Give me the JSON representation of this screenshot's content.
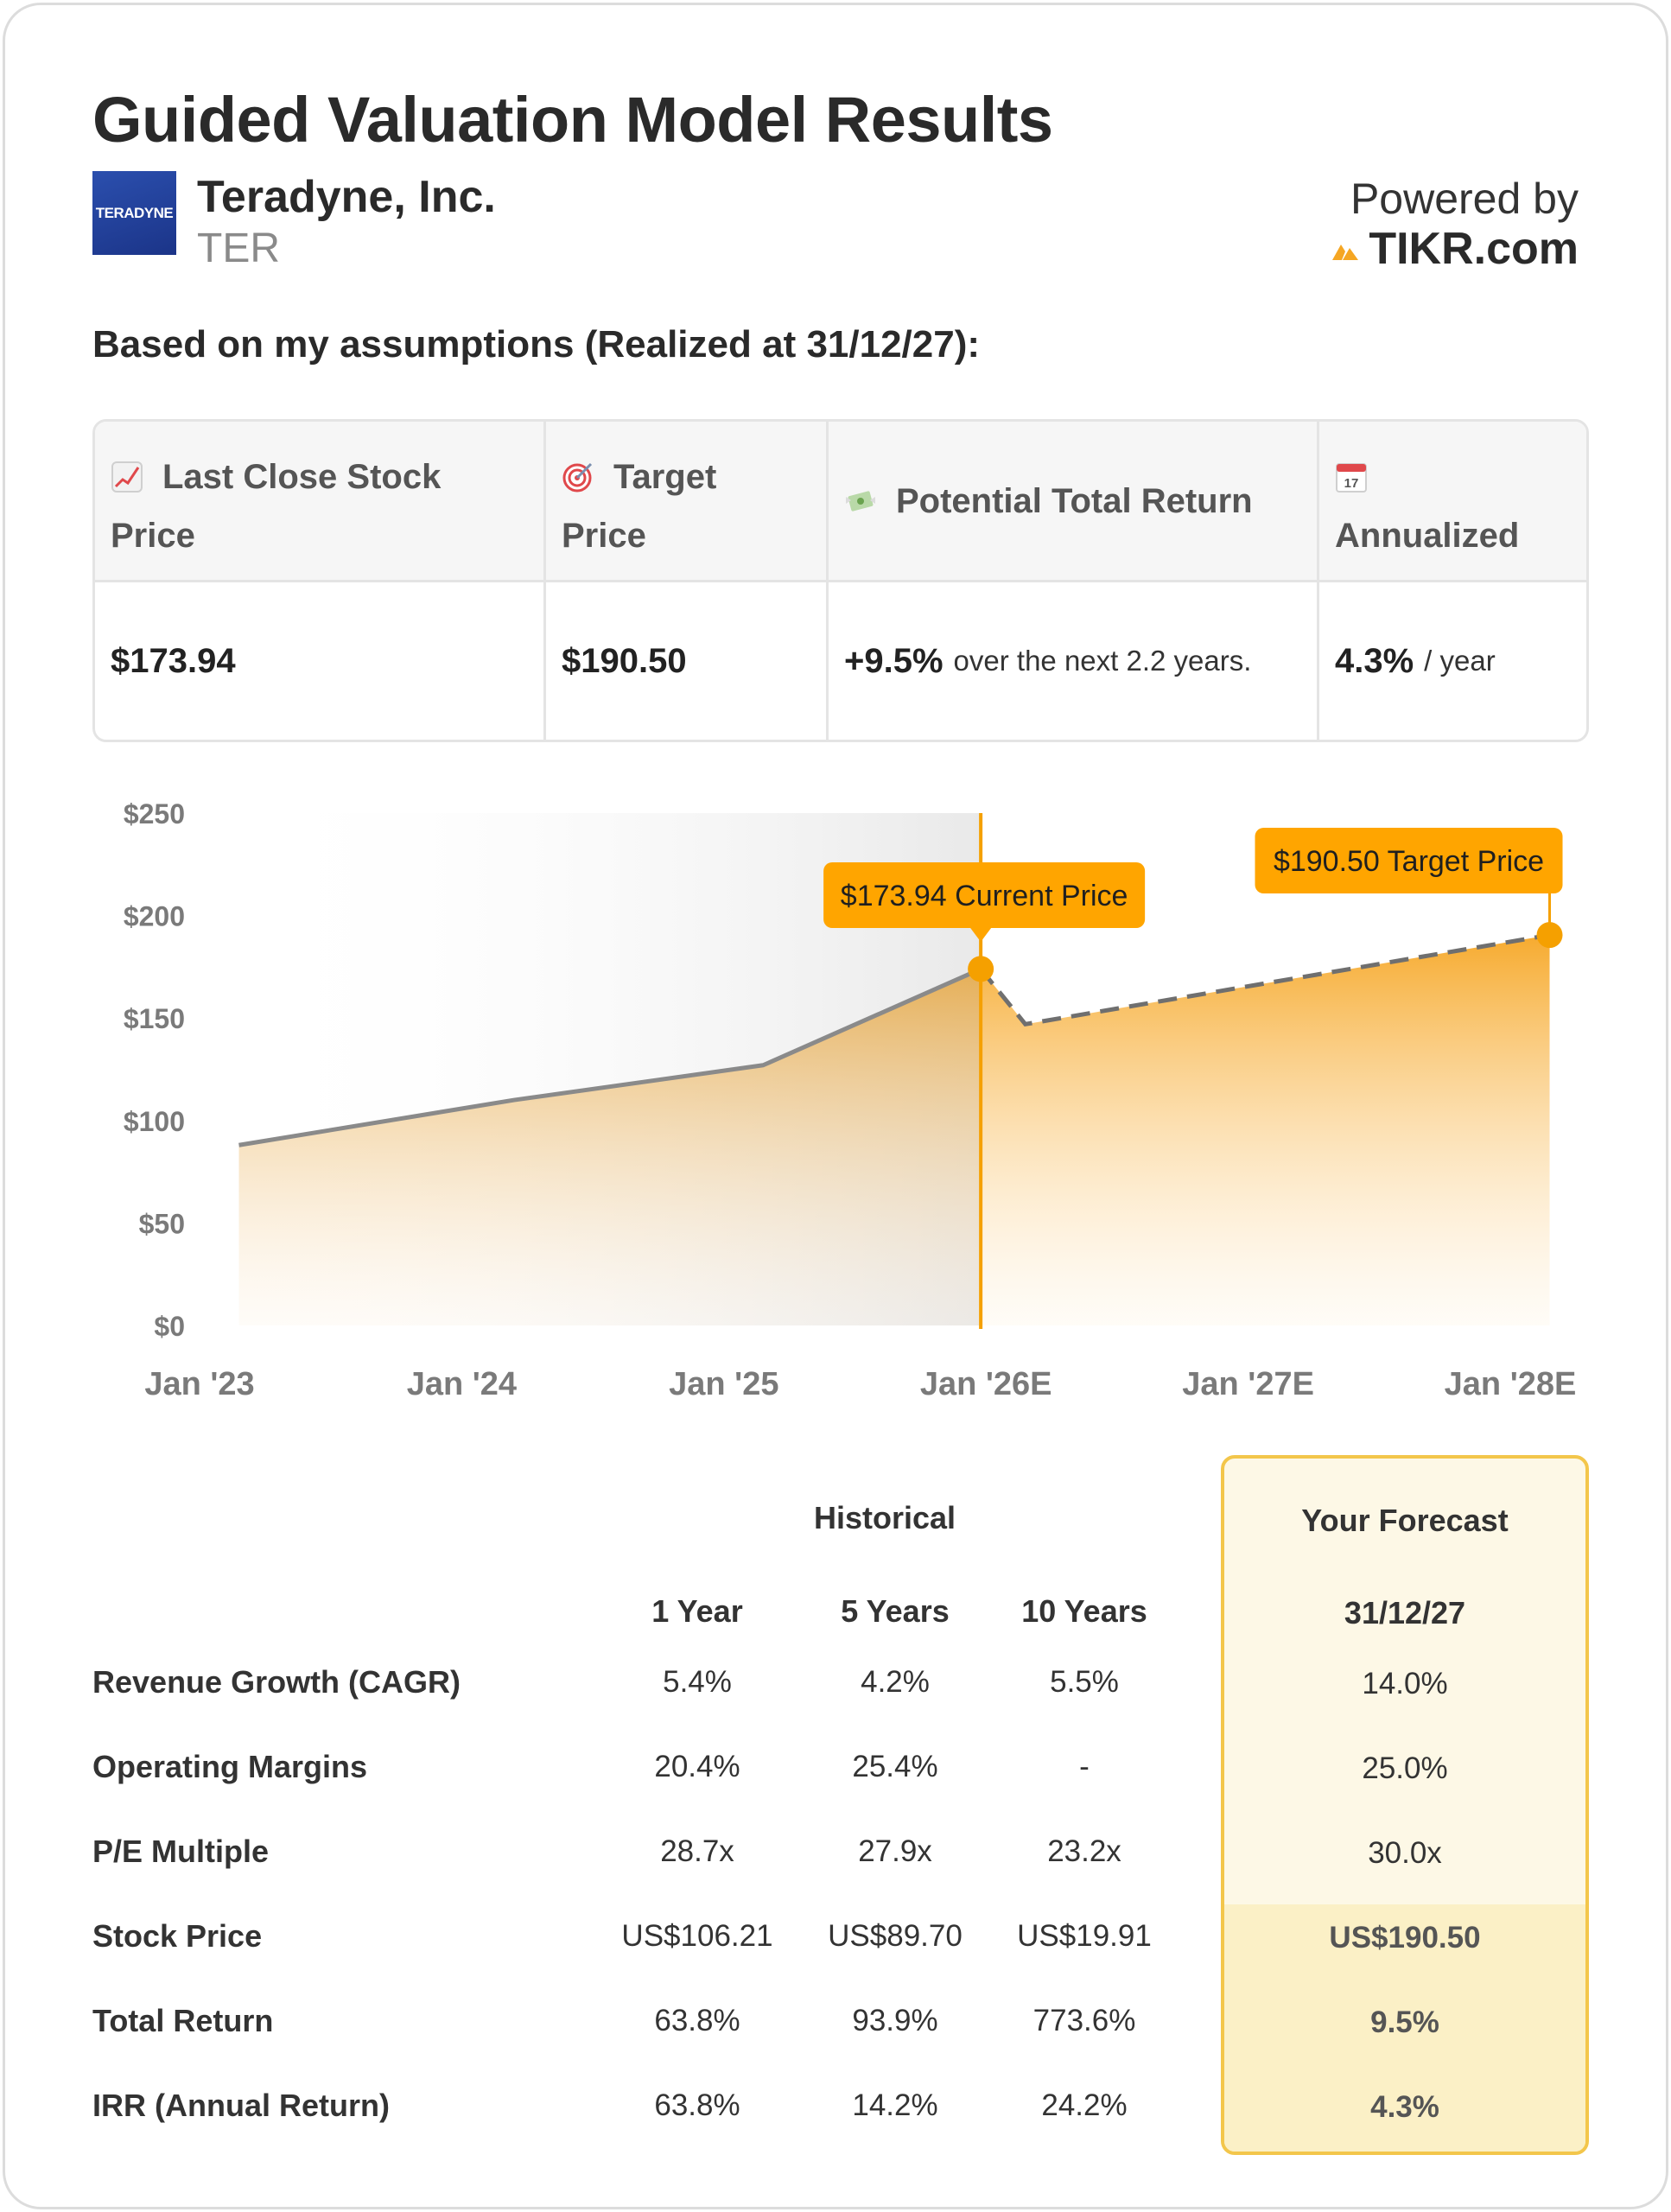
{
  "header": {
    "title": "Guided Valuation Model Results",
    "company_name": "Teradyne, Inc.",
    "ticker": "TER",
    "logo_text": "TERADYNE",
    "powered_by": "Powered by",
    "brand": "TIKR.com"
  },
  "assumptions_line": "Based on my assumptions (Realized at 31/12/27):",
  "summary": {
    "col1_label": "Last Close Stock Price",
    "col1_label_a": "Last Close Stock",
    "col1_label_b": "Price",
    "col1_icon": "chart-increasing-icon",
    "col2_label_a": "Target",
    "col2_label_b": "Price",
    "col2_icon": "target-icon",
    "col3_label": "Potential Total Return",
    "col3_icon": "money-wings-icon",
    "col4_label": "Annualized",
    "col4_icon": "calendar-icon",
    "col4_icon_text": "17",
    "last_close": "$173.94",
    "target": "$190.50",
    "total_return": "+9.5%",
    "total_return_suffix": "over the next 2.2 years.",
    "annualized": "4.3%",
    "annualized_suffix": "/ year"
  },
  "colors": {
    "accent": "#FFA500",
    "accent_dark": "#F59C00",
    "historical_line": "#8A8A8A",
    "forecast_box_border": "#F3C64B",
    "forecast_box_bg": "#FDF8E6"
  },
  "chart_data": {
    "type": "area",
    "x": [
      "Jan '23",
      "Jan '24",
      "Jan '25",
      "Jan '26E",
      "Jan '27E",
      "Jan '28E"
    ],
    "yticks": [
      "$0",
      "$50",
      "$100",
      "$150",
      "$200",
      "$250"
    ],
    "ylim": [
      0,
      250
    ],
    "xlim_years": [
      2023.0,
      2028.0
    ],
    "historical": [
      {
        "t": 2023.15,
        "v": 88
      },
      {
        "t": 2024.2,
        "v": 110
      },
      {
        "t": 2025.15,
        "v": 127
      },
      {
        "t": 2025.98,
        "v": 173.94
      }
    ],
    "forecast": [
      {
        "t": 2025.98,
        "v": 173.94
      },
      {
        "t": 2026.15,
        "v": 147
      },
      {
        "t": 2028.15,
        "v": 190.5
      }
    ],
    "current_marker": {
      "t": 2025.98,
      "v": 173.94,
      "label": "$173.94 Current Price"
    },
    "target_marker": {
      "t": 2028.15,
      "v": 190.5,
      "label": "$190.50 Target Price"
    }
  },
  "metrics": {
    "historical_header": "Historical",
    "forecast_header": "Your Forecast",
    "columns": [
      "1 Year",
      "5 Years",
      "10 Years"
    ],
    "forecast_date": "31/12/27",
    "rows": [
      {
        "label": "Revenue Growth (CAGR)",
        "y1": "5.4%",
        "y5": "4.2%",
        "y10": "5.5%",
        "fc": "14.0%"
      },
      {
        "label": "Operating Margins",
        "y1": "20.4%",
        "y5": "25.4%",
        "y10": "-",
        "fc": "25.0%"
      },
      {
        "label": "P/E Multiple",
        "y1": "28.7x",
        "y5": "27.9x",
        "y10": "23.2x",
        "fc": "30.0x"
      },
      {
        "label": "Stock Price",
        "y1": "US$106.21",
        "y5": "US$89.70",
        "y10": "US$19.91",
        "fc": "US$190.50"
      },
      {
        "label": "Total Return",
        "y1": "63.8%",
        "y5": "93.9%",
        "y10": "773.6%",
        "fc": "9.5%"
      },
      {
        "label": "IRR (Annual Return)",
        "y1": "63.8%",
        "y5": "14.2%",
        "y10": "24.2%",
        "fc": "4.3%"
      }
    ]
  }
}
